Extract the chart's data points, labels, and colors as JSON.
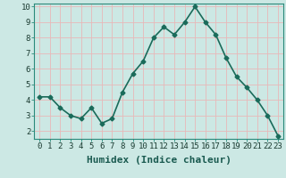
{
  "x": [
    0,
    1,
    2,
    3,
    4,
    5,
    6,
    7,
    8,
    9,
    10,
    11,
    12,
    13,
    14,
    15,
    16,
    17,
    18,
    19,
    20,
    21,
    22,
    23
  ],
  "y": [
    4.2,
    4.2,
    3.5,
    3.0,
    2.8,
    3.5,
    2.5,
    2.8,
    4.5,
    5.7,
    6.5,
    8.0,
    8.7,
    8.2,
    9.0,
    10.0,
    9.0,
    8.2,
    6.7,
    5.5,
    4.8,
    4.0,
    3.0,
    1.7
  ],
  "xlabel": "Humidex (Indice chaleur)",
  "line_color": "#1a6b5a",
  "marker_color": "#1a6b5a",
  "bg_color": "#cce8e4",
  "grid_color": "#e8b8b8",
  "ylim": [
    1.5,
    10.2
  ],
  "xlim": [
    -0.5,
    23.5
  ],
  "yticks": [
    2,
    3,
    4,
    5,
    6,
    7,
    8,
    9,
    10
  ],
  "xtick_labels": [
    "0",
    "1",
    "2",
    "3",
    "4",
    "5",
    "6",
    "7",
    "8",
    "9",
    "10",
    "11",
    "12",
    "13",
    "14",
    "15",
    "16",
    "17",
    "18",
    "19",
    "20",
    "21",
    "22",
    "23"
  ],
  "xlabel_fontsize": 8,
  "tick_fontsize": 6.5,
  "linewidth": 1.2,
  "markersize": 2.5
}
